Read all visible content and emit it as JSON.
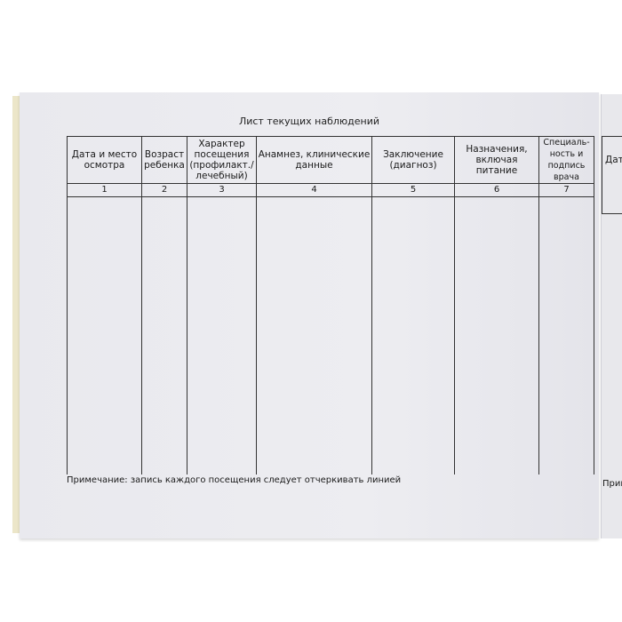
{
  "document": {
    "title": "Лист текущих наблюдений",
    "columns": [
      {
        "label": "Дата и место осмотра",
        "number": "1"
      },
      {
        "label": "Возраст ребенка",
        "number": "2"
      },
      {
        "label": "Характер посещения (профилакт./ лечебный)",
        "number": "3"
      },
      {
        "label": "Анамнез, клинические данные",
        "number": "4"
      },
      {
        "label": "Заключение (диагноз)",
        "number": "5"
      },
      {
        "label": "Назначения, включая питание",
        "number": "6"
      },
      {
        "label": "Специаль-ность и подпись врача",
        "number": "7"
      }
    ],
    "note": "Примечание: запись каждого посещения следует отчеркивать линией"
  },
  "next_page": {
    "header_fragment": "Дата",
    "note_fragment": "Прим"
  }
}
